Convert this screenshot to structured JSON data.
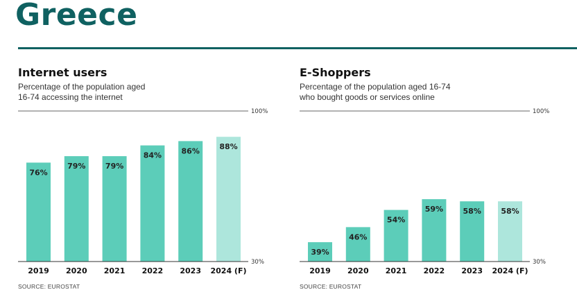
{
  "page": {
    "title": "Greece"
  },
  "colors": {
    "title": "#0f6161",
    "bar": "#5ccdb9",
    "bar_forecast": "#ade6dc",
    "axis": "#333333",
    "label": "#222222"
  },
  "chart_data": [
    {
      "type": "bar",
      "title": "Internet users",
      "subtitle_lines": [
        "Percentage of the population aged",
        "16-74 accessing the internet"
      ],
      "categories": [
        "2019",
        "2020",
        "2021",
        "2022",
        "2023",
        "2024 (F)"
      ],
      "values": [
        76,
        79,
        79,
        84,
        86,
        88
      ],
      "value_labels": [
        "76%",
        "79%",
        "79%",
        "84%",
        "86%",
        "88%"
      ],
      "forecast_index": 5,
      "ylim": [
        30,
        100
      ],
      "axis_labels": {
        "top": "100%",
        "bottom": "30%"
      },
      "xlabel": "",
      "ylabel": "",
      "source": "SOURCE: EUROSTAT"
    },
    {
      "type": "bar",
      "title": "E-Shoppers",
      "subtitle_lines": [
        "Percentage of the population aged 16-74",
        "who bought goods or services online"
      ],
      "categories": [
        "2019",
        "2020",
        "2021",
        "2022",
        "2023",
        "2024 (F)"
      ],
      "values": [
        39,
        46,
        54,
        59,
        58,
        58
      ],
      "value_labels": [
        "39%",
        "46%",
        "54%",
        "59%",
        "58%",
        "58%"
      ],
      "forecast_index": 5,
      "ylim": [
        30,
        100
      ],
      "axis_labels": {
        "top": "100%",
        "bottom": "30%"
      },
      "xlabel": "",
      "ylabel": "",
      "source": "SOURCE: EUROSTAT"
    }
  ]
}
